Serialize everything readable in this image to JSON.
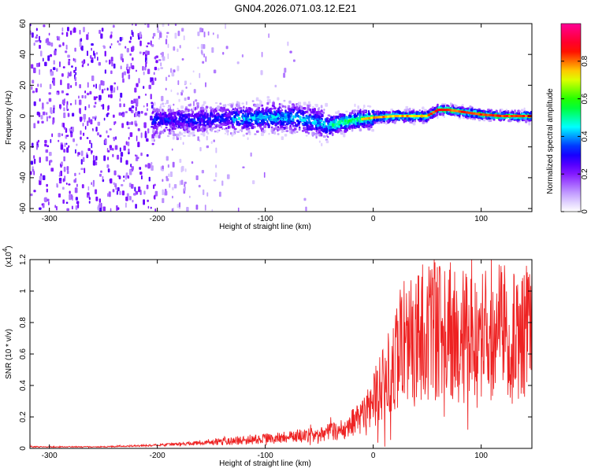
{
  "title": "GN04.2026.071.03.12.E21",
  "chart_data": [
    {
      "type": "heatmap",
      "xlabel": "Height of straight line (km)",
      "ylabel": "Frequency (Hz)",
      "xlim": [
        -318,
        147
      ],
      "ylim": [
        -62,
        60
      ],
      "xticks": [
        -300,
        -200,
        -100,
        0,
        100
      ],
      "yticks": [
        -60,
        -40,
        -20,
        0,
        20,
        40,
        60
      ],
      "colorbar": {
        "label": "Normalized spectral amplitude",
        "range": [
          0.0,
          1.0
        ],
        "ticks": [
          0.0,
          0.2,
          0.4,
          0.6,
          0.8
        ],
        "colors": [
          "#ffffff",
          "#c7a6ff",
          "#7a00ff",
          "#0000ff",
          "#00ffff",
          "#00ff00",
          "#ffff00",
          "#ff0000",
          "#ff0099"
        ]
      },
      "ridge_frequency": {
        "x": [
          -200,
          -150,
          -100,
          -70,
          -40,
          -20,
          0,
          20,
          50,
          60,
          70,
          80,
          100,
          120,
          147
        ],
        "y": [
          -3,
          -2,
          -1,
          -1,
          -6,
          -3,
          -1,
          0,
          0,
          4,
          4,
          3,
          1,
          0,
          0
        ]
      }
    },
    {
      "type": "line",
      "xlabel": "Height of straight line (km)",
      "ylabel": "SNR (10 * v/v)",
      "scale_label": "(x10",
      "scale_exponent": "4",
      "scale_close": ")",
      "xlim": [
        -318,
        147
      ],
      "ylim": [
        0.0,
        1.2
      ],
      "xticks": [
        -300,
        -200,
        -100,
        0,
        100
      ],
      "yticks": [
        0.0,
        0.2,
        0.4,
        0.6,
        0.8,
        1.0,
        1.2
      ],
      "color": "#ee2222",
      "envelope": {
        "x": [
          -318,
          -250,
          -200,
          -150,
          -100,
          -50,
          -30,
          -10,
          0,
          10,
          20,
          30,
          40,
          50,
          60,
          70,
          80,
          90,
          100,
          110,
          120,
          130,
          147
        ],
        "y": [
          0.01,
          0.01,
          0.02,
          0.04,
          0.06,
          0.09,
          0.12,
          0.2,
          0.3,
          0.42,
          0.6,
          0.68,
          0.72,
          0.75,
          0.75,
          0.74,
          0.72,
          0.7,
          0.7,
          0.72,
          0.74,
          0.7,
          0.7
        ]
      }
    }
  ]
}
